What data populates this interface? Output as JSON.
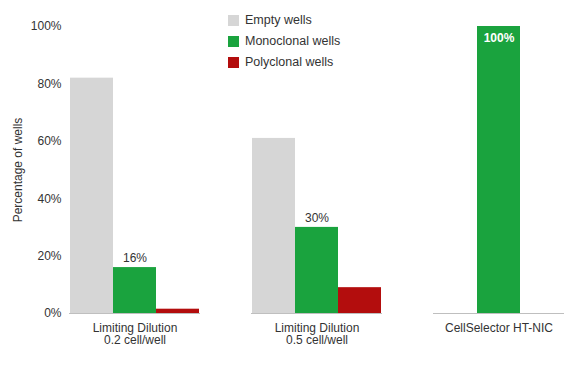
{
  "chart_data": {
    "type": "bar",
    "y_label": "Percentage of wells",
    "categories": [
      "Limiting Dilution\n0.2 cell/well",
      "Limiting Dilution\n0.5 cell/well",
      "CellSelector HT-NIC"
    ],
    "series": [
      {
        "name": "Empty wells",
        "color": "#d6d6d6",
        "values": [
          82,
          61,
          0
        ]
      },
      {
        "name": "Monoclonal wells",
        "color": "#1aa33e",
        "values": [
          16,
          30,
          100
        ],
        "data_labels": true,
        "value_labels": [
          "16%",
          "30%",
          "100%"
        ]
      },
      {
        "name": "Polyclonal wells",
        "color": "#b30d0d",
        "values": [
          1.5,
          9,
          0
        ]
      }
    ],
    "ylim": [
      0,
      100
    ],
    "yticks": [
      {
        "value": 0,
        "label": "0%"
      },
      {
        "value": 20,
        "label": "20%"
      },
      {
        "value": 40,
        "label": "40%"
      },
      {
        "value": 60,
        "label": "60%"
      },
      {
        "value": 80,
        "label": "80%"
      },
      {
        "value": 100,
        "label": "100%"
      }
    ],
    "grid": false,
    "legend": "top"
  }
}
